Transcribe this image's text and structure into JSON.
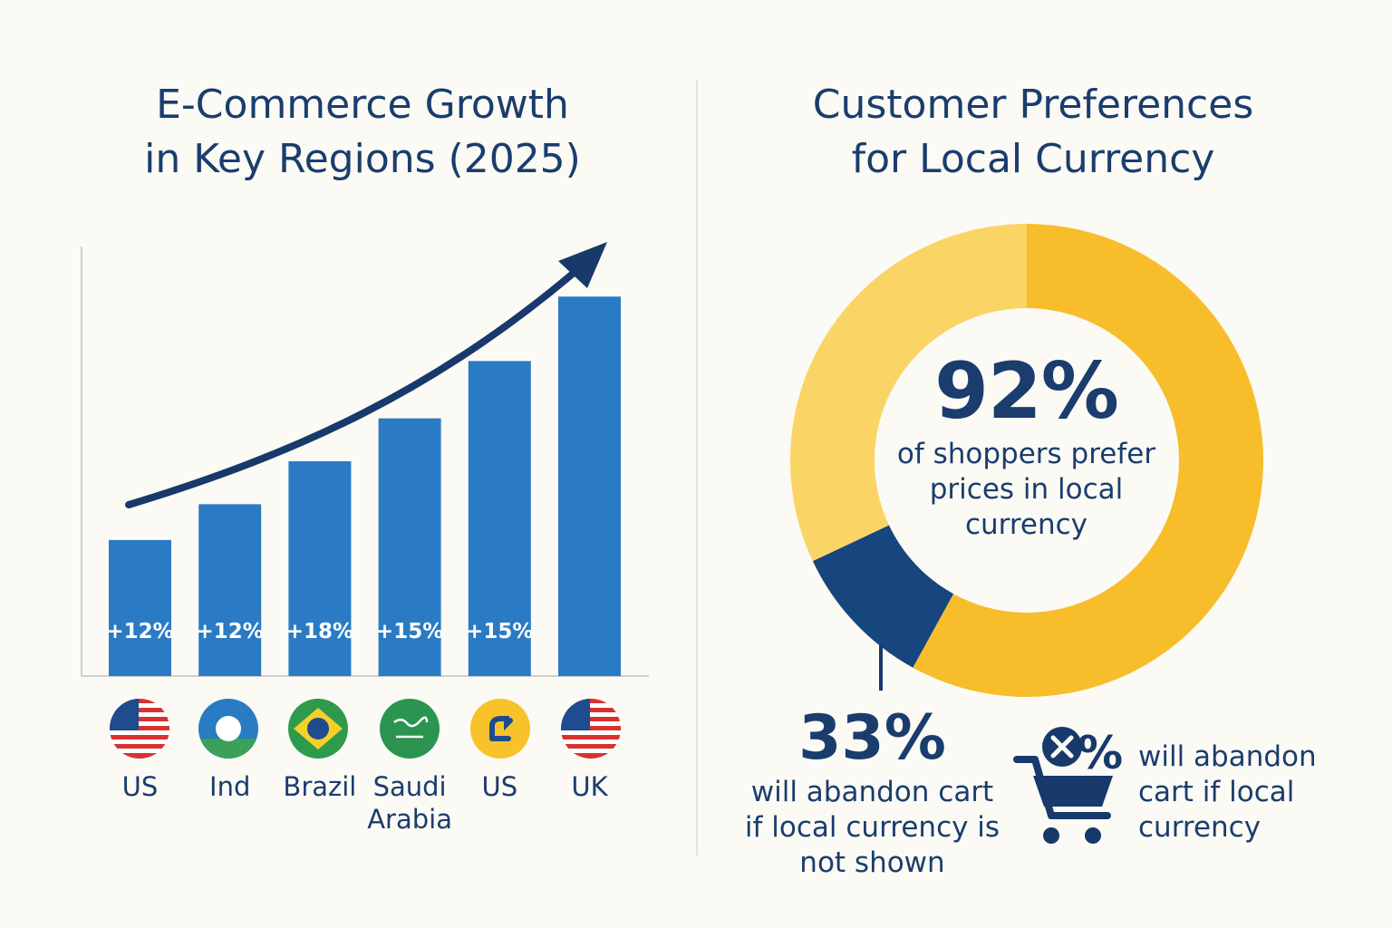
{
  "chart_data": [
    {
      "type": "bar",
      "title": "E-Commerce Growth\nin Key Regions (2025)",
      "categories": [
        "US",
        "Ind",
        "Brazil",
        "Saudi\nArabia",
        "US",
        "UK"
      ],
      "values": [
        1.9,
        2.4,
        3.0,
        3.6,
        4.4,
        5.3
      ],
      "data_labels": [
        "+12%",
        "+12%",
        "+18%",
        "+15%",
        "+15%",
        ""
      ],
      "ylim": [
        0,
        6
      ],
      "grid": false,
      "trend_arrow": true,
      "bar_color": "#2a7bc4",
      "arrow_color": "#17396b"
    },
    {
      "type": "pie",
      "title": "Customer Preferences\nfor Local Currency",
      "slices": [
        {
          "label": "",
          "value": 58,
          "color": "#f7bd2a"
        },
        {
          "label": "",
          "value": 10,
          "color": "#17457e"
        },
        {
          "label": "",
          "value": 32,
          "color": "#fad565"
        }
      ],
      "center_value": "92%",
      "center_caption": "of shoppers prefer prices in local currency"
    }
  ],
  "flags": [
    "us-flag-icon",
    "india-flag-icon",
    "brazil-flag-icon",
    "saudi-flag-icon",
    "us-flag-icon",
    "uk-flag-icon"
  ],
  "stat_left": {
    "value": "33%",
    "caption": "will abandon cart if local currency is not shown"
  },
  "stat_right": {
    "icon": "cart-cancel-icon",
    "caption": "will abandon cart if local currency"
  },
  "colors": {
    "navy": "#17396b",
    "bar": "#2a7bc4",
    "gold": "#f7bd2a",
    "gold_light": "#fad565",
    "background": "#fbfaf4"
  }
}
